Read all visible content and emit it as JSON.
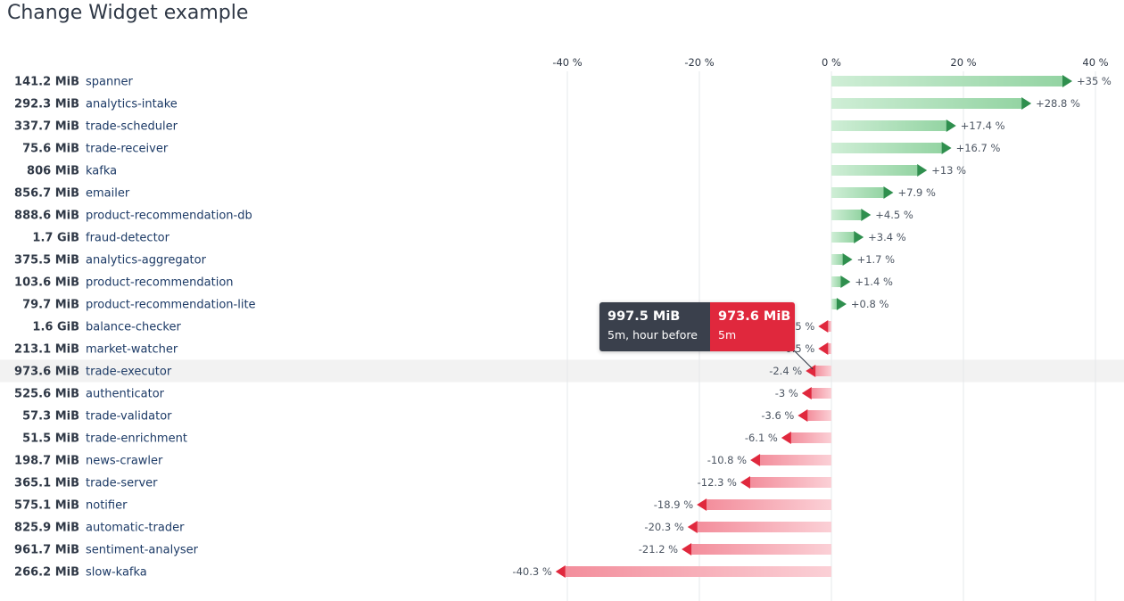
{
  "title": "Change Widget example",
  "tooltip": {
    "before_value": "997.5 MiB",
    "before_label": "5m, hour before",
    "now_value": "973.6 MiB",
    "now_label": "5m"
  },
  "colors": {
    "positive": "#2f8f4e",
    "positive_bar": "#a9dcb4",
    "negative": "#e0283d",
    "negative_bar": "#f6a9b3",
    "highlight_row": "#f2f2f2",
    "tooltip_before": "#3a404c",
    "tooltip_now": "#e0283d"
  },
  "chart_data": {
    "type": "bar",
    "orientation": "horizontal",
    "x_unit": "%",
    "xlim": [
      -40,
      40
    ],
    "x_ticks": [
      -40,
      -20,
      0,
      20,
      40
    ],
    "x_tick_labels": [
      "-40 %",
      "-20 %",
      "0 %",
      "20 %",
      "40 %"
    ],
    "grid": true,
    "highlighted_row": "trade-executor",
    "rows": [
      {
        "size": "141.2 MiB",
        "name": "spanner",
        "change": 35,
        "label": "+35 %"
      },
      {
        "size": "292.3 MiB",
        "name": "analytics-intake",
        "change": 28.8,
        "label": "+28.8 %"
      },
      {
        "size": "337.7 MiB",
        "name": "trade-scheduler",
        "change": 17.4,
        "label": "+17.4 %"
      },
      {
        "size": "75.6 MiB",
        "name": "trade-receiver",
        "change": 16.7,
        "label": "+16.7 %"
      },
      {
        "size": "806 MiB",
        "name": "kafka",
        "change": 13,
        "label": "+13 %"
      },
      {
        "size": "856.7 MiB",
        "name": "emailer",
        "change": 7.9,
        "label": "+7.9 %"
      },
      {
        "size": "888.6 MiB",
        "name": "product-recommendation-db",
        "change": 4.5,
        "label": "+4.5 %"
      },
      {
        "size": "1.7 GiB",
        "name": "fraud-detector",
        "change": 3.4,
        "label": "+3.4 %"
      },
      {
        "size": "375.5 MiB",
        "name": "analytics-aggregator",
        "change": 1.7,
        "label": "+1.7 %"
      },
      {
        "size": "103.6 MiB",
        "name": "product-recommendation",
        "change": 1.4,
        "label": "+1.4 %"
      },
      {
        "size": "79.7 MiB",
        "name": "product-recommendation-lite",
        "change": 0.8,
        "label": "+0.8 %"
      },
      {
        "size": "1.6 GiB",
        "name": "balance-checker",
        "change": -0.5,
        "label": "-0.5 %"
      },
      {
        "size": "213.1 MiB",
        "name": "market-watcher",
        "change": -0.5,
        "label": "-0.5 %"
      },
      {
        "size": "973.6 MiB",
        "name": "trade-executor",
        "change": -2.4,
        "label": "-2.4 %"
      },
      {
        "size": "525.6 MiB",
        "name": "authenticator",
        "change": -3,
        "label": "-3 %"
      },
      {
        "size": "57.3 MiB",
        "name": "trade-validator",
        "change": -3.6,
        "label": "-3.6 %"
      },
      {
        "size": "51.5 MiB",
        "name": "trade-enrichment",
        "change": -6.1,
        "label": "-6.1 %"
      },
      {
        "size": "198.7 MiB",
        "name": "news-crawler",
        "change": -10.8,
        "label": "-10.8 %"
      },
      {
        "size": "365.1 MiB",
        "name": "trade-server",
        "change": -12.3,
        "label": "-12.3 %"
      },
      {
        "size": "575.1 MiB",
        "name": "notifier",
        "change": -18.9,
        "label": "-18.9 %"
      },
      {
        "size": "825.9 MiB",
        "name": "automatic-trader",
        "change": -20.3,
        "label": "-20.3 %"
      },
      {
        "size": "961.7 MiB",
        "name": "sentiment-analyser",
        "change": -21.2,
        "label": "-21.2 %"
      },
      {
        "size": "266.2 MiB",
        "name": "slow-kafka",
        "change": -40.3,
        "label": "-40.3 %"
      }
    ]
  }
}
